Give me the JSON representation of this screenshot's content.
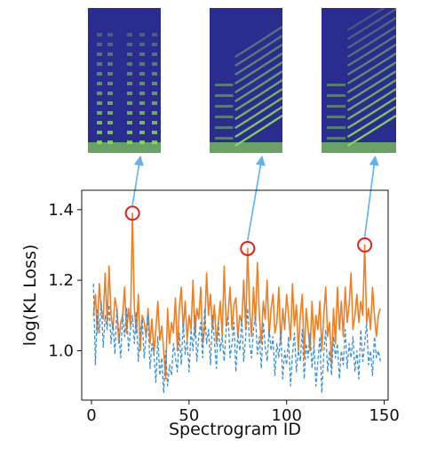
{
  "chart_data": {
    "type": "line",
    "title": "",
    "xlabel": "Spectrogram ID",
    "ylabel": "log(KL Loss)",
    "xlim": [
      -5,
      152
    ],
    "ylim": [
      0.86,
      1.455
    ],
    "xticks": [
      0,
      50,
      100,
      150
    ],
    "yticks": [
      1.0,
      1.2,
      1.4
    ],
    "xtick_labels": [
      "0",
      "50",
      "100",
      "150"
    ],
    "ytick_labels": [
      "1.0",
      "1.2",
      "1.4"
    ],
    "grid": false,
    "legend": "none",
    "colors": {
      "solid_series": "#f07f23",
      "dashed_series": "#3a8fd4",
      "highlight_circle": "#e3201b",
      "callout_arrow": "#5fb1f0",
      "spectrogram_background": "#2a2c8f",
      "spectrogram_harmonic": "#8ee04f"
    },
    "series": [
      {
        "style": "solid",
        "x": [
          1,
          2,
          3,
          4,
          5,
          6,
          7,
          8,
          9,
          10,
          11,
          12,
          13,
          14,
          15,
          16,
          17,
          18,
          19,
          20,
          21,
          22,
          23,
          24,
          25,
          26,
          27,
          28,
          29,
          30,
          31,
          32,
          33,
          34,
          35,
          36,
          37,
          38,
          39,
          40,
          41,
          42,
          43,
          44,
          45,
          46,
          47,
          48,
          49,
          50,
          51,
          52,
          53,
          54,
          55,
          56,
          57,
          58,
          59,
          60,
          61,
          62,
          63,
          64,
          65,
          66,
          67,
          68,
          69,
          70,
          71,
          72,
          73,
          74,
          75,
          76,
          77,
          78,
          79,
          80,
          81,
          82,
          83,
          84,
          85,
          86,
          87,
          88,
          89,
          90,
          91,
          92,
          93,
          94,
          95,
          96,
          97,
          98,
          99,
          100,
          101,
          102,
          103,
          104,
          105,
          106,
          107,
          108,
          109,
          110,
          111,
          112,
          113,
          114,
          115,
          116,
          117,
          118,
          119,
          120,
          121,
          122,
          123,
          124,
          125,
          126,
          127,
          128,
          129,
          130,
          131,
          132,
          133,
          134,
          135,
          136,
          137,
          138,
          139,
          140,
          141,
          142,
          143,
          144,
          145,
          146,
          147,
          148
        ],
        "y": [
          1.1,
          1.16,
          1.05,
          1.19,
          1.12,
          1.09,
          1.22,
          1.08,
          1.24,
          1.1,
          1.06,
          1.15,
          1.12,
          1.02,
          1.08,
          1.1,
          1.18,
          1.05,
          1.12,
          1.07,
          1.39,
          1.12,
          1.05,
          1.16,
          1.0,
          1.1,
          1.08,
          1.04,
          1.12,
          1.02,
          1.09,
          0.99,
          1.06,
          1.14,
          1.03,
          1.07,
          1.0,
          0.92,
          1.12,
          1.02,
          1.08,
          1.05,
          1.15,
          1.0,
          1.12,
          1.18,
          1.06,
          1.14,
          1.03,
          1.1,
          1.06,
          1.2,
          1.04,
          1.12,
          1.09,
          1.18,
          1.02,
          1.06,
          1.22,
          1.1,
          1.16,
          1.06,
          1.13,
          1.02,
          1.08,
          1.14,
          1.04,
          1.24,
          1.07,
          1.1,
          1.18,
          1.06,
          1.13,
          1.15,
          1.04,
          1.1,
          1.08,
          1.2,
          1.06,
          1.29,
          1.12,
          1.04,
          1.18,
          1.08,
          1.25,
          1.1,
          1.02,
          1.14,
          1.09,
          1.2,
          1.04,
          1.12,
          1.16,
          1.05,
          1.08,
          1.18,
          1.02,
          1.12,
          1.06,
          1.16,
          1.1,
          1.03,
          1.19,
          1.07,
          1.13,
          1.0,
          1.1,
          1.16,
          0.98,
          1.12,
          1.06,
          1.0,
          1.14,
          1.02,
          1.1,
          1.06,
          1.14,
          1.0,
          1.1,
          1.18,
          1.04,
          1.08,
          0.96,
          1.12,
          1.02,
          1.18,
          1.06,
          1.14,
          1.04,
          1.18,
          1.08,
          1.13,
          1.22,
          1.06,
          1.1,
          1.16,
          1.08,
          1.14,
          1.1,
          1.3,
          1.08,
          1.12,
          1.06,
          1.18,
          1.1,
          1.04,
          1.1,
          1.12
        ]
      },
      {
        "style": "dashed",
        "x": [
          1,
          2,
          3,
          4,
          5,
          6,
          7,
          8,
          9,
          10,
          11,
          12,
          13,
          14,
          15,
          16,
          17,
          18,
          19,
          20,
          21,
          22,
          23,
          24,
          25,
          26,
          27,
          28,
          29,
          30,
          31,
          32,
          33,
          34,
          35,
          36,
          37,
          38,
          39,
          40,
          41,
          42,
          43,
          44,
          45,
          46,
          47,
          48,
          49,
          50,
          51,
          52,
          53,
          54,
          55,
          56,
          57,
          58,
          59,
          60,
          61,
          62,
          63,
          64,
          65,
          66,
          67,
          68,
          69,
          70,
          71,
          72,
          73,
          74,
          75,
          76,
          77,
          78,
          79,
          80,
          81,
          82,
          83,
          84,
          85,
          86,
          87,
          88,
          89,
          90,
          91,
          92,
          93,
          94,
          95,
          96,
          97,
          98,
          99,
          100,
          101,
          102,
          103,
          104,
          105,
          106,
          107,
          108,
          109,
          110,
          111,
          112,
          113,
          114,
          115,
          116,
          117,
          118,
          119,
          120,
          121,
          122,
          123,
          124,
          125,
          126,
          127,
          128,
          129,
          130,
          131,
          132,
          133,
          134,
          135,
          136,
          137,
          138,
          139,
          140,
          141,
          142,
          143,
          144,
          145,
          146,
          147,
          148
        ],
        "y": [
          1.19,
          0.96,
          1.12,
          1.05,
          1.14,
          1.01,
          1.1,
          1.06,
          1.13,
          1.02,
          1.08,
          0.99,
          1.12,
          1.05,
          0.98,
          1.1,
          1.04,
          1.12,
          1.0,
          1.06,
          1.1,
          1.02,
          1.11,
          0.97,
          1.05,
          1.09,
          0.98,
          1.04,
          1.1,
          0.95,
          1.02,
          0.99,
          0.91,
          1.04,
          0.93,
          0.98,
          0.88,
          1.0,
          0.9,
          0.96,
          0.93,
          1.02,
          0.98,
          0.94,
          1.05,
          0.96,
          1.08,
          0.99,
          1.03,
          0.94,
          1.06,
          1.0,
          1.1,
          0.97,
          1.04,
          1.08,
          0.98,
          1.12,
          1.02,
          1.06,
          0.96,
          1.1,
          1.03,
          0.95,
          1.08,
          1.0,
          1.04,
          0.97,
          1.06,
          1.1,
          0.98,
          1.02,
          1.08,
          0.94,
          1.05,
          1.0,
          1.09,
          0.97,
          1.04,
          1.12,
          1.02,
          0.98,
          1.06,
          1.1,
          0.99,
          1.04,
          0.95,
          1.08,
          1.01,
          0.97,
          1.06,
          1.0,
          1.04,
          0.93,
          1.02,
          0.98,
          1.06,
          0.92,
          1.0,
          0.96,
          1.04,
          0.9,
          0.99,
          1.05,
          0.94,
          1.0,
          0.97,
          1.06,
          0.92,
          1.02,
          0.98,
          1.05,
          0.95,
          1.02,
          0.9,
          0.97,
          1.04,
          0.88,
          0.99,
          1.06,
          0.94,
          1.0,
          0.93,
          1.04,
          0.98,
          1.02,
          0.92,
          1.0,
          0.96,
          1.06,
          0.95,
          1.02,
          0.98,
          1.04,
          0.94,
          1.0,
          0.92,
          1.06,
          0.97,
          1.02,
          1.08,
          0.96,
          1.0,
          0.93,
          1.04,
          0.98,
          1.0,
          0.97
        ]
      }
    ],
    "highlighted_peaks": [
      {
        "x": 21,
        "y": 1.39
      },
      {
        "x": 80,
        "y": 1.29
      },
      {
        "x": 140,
        "y": 1.3
      }
    ],
    "spectrogram_insets": [
      {
        "points_to_x": 21,
        "pattern": "vertical-bursts"
      },
      {
        "points_to_x": 80,
        "pattern": "rising-harmonics"
      },
      {
        "points_to_x": 140,
        "pattern": "rising-harmonics-dense"
      }
    ]
  }
}
